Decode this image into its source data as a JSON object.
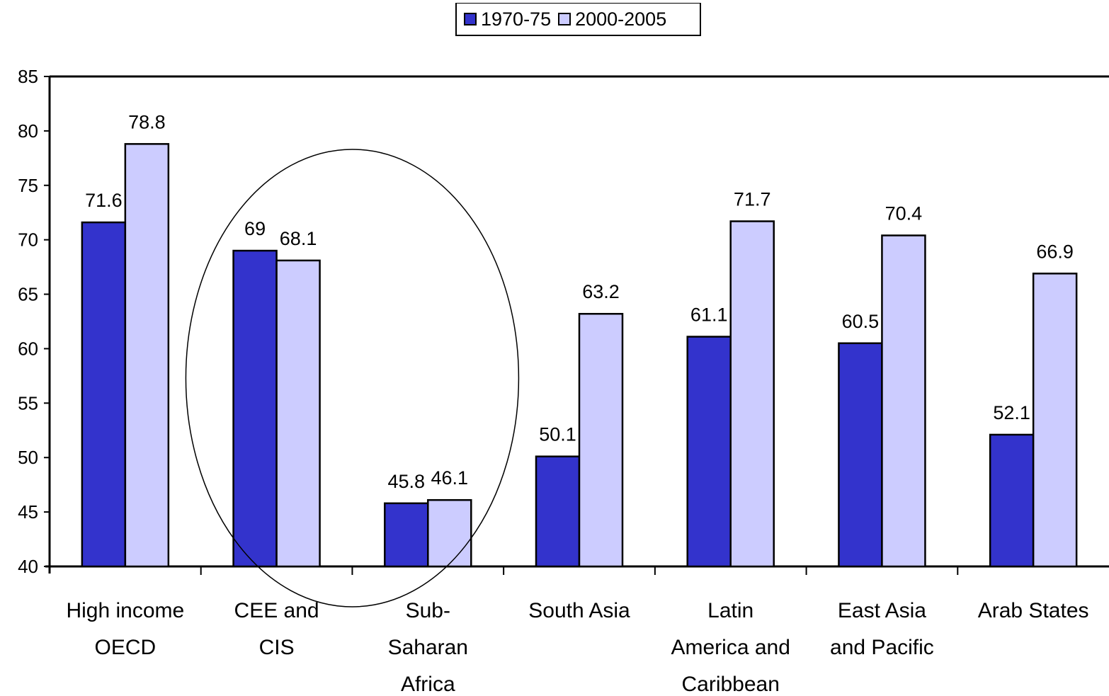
{
  "chart_data": {
    "type": "bar",
    "title": "",
    "xlabel": "",
    "ylabel": "",
    "ylim": [
      40,
      85
    ],
    "yticks": [
      40,
      45,
      50,
      55,
      60,
      65,
      70,
      75,
      80,
      85
    ],
    "grid": false,
    "legend_position": "top-center",
    "categories": [
      "High income OECD",
      "CEE and CIS",
      "Sub-Saharan Africa",
      "South Asia",
      "Latin America and Caribbean",
      "East Asia and Pacific",
      "Arab States"
    ],
    "category_label_lines": [
      [
        "High income",
        "OECD"
      ],
      [
        "CEE and",
        "CIS"
      ],
      [
        "Sub-",
        "Saharan",
        "Africa"
      ],
      [
        "South Asia"
      ],
      [
        "Latin",
        "America and",
        "Caribbean"
      ],
      [
        "East Asia",
        "and Pacific"
      ],
      [
        "Arab States"
      ]
    ],
    "series": [
      {
        "name": "1970-75",
        "color": "#3333cc",
        "values": [
          71.6,
          69,
          45.8,
          50.1,
          61.1,
          60.5,
          52.1
        ],
        "labels": [
          "71.6",
          "69",
          "45.8",
          "50.1",
          "61.1",
          "60.5",
          "52.1"
        ]
      },
      {
        "name": "2000-2005",
        "color": "#ccccff",
        "values": [
          78.8,
          68.1,
          46.1,
          63.2,
          71.7,
          70.4,
          66.9
        ],
        "labels": [
          "78.8",
          "68.1",
          "46.1",
          "63.2",
          "71.7",
          "70.4",
          "66.9"
        ]
      }
    ],
    "annotations": [
      {
        "type": "ellipse",
        "encloses_categories": [
          "CEE and CIS",
          "Sub-Saharan Africa"
        ]
      }
    ]
  }
}
